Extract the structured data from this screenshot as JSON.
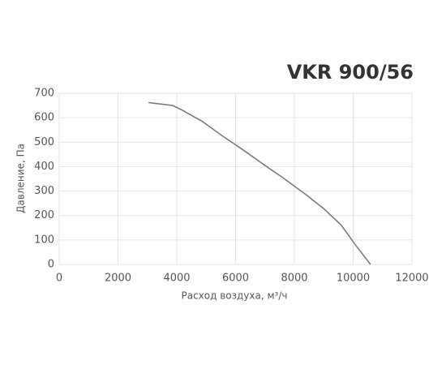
{
  "chart_data": {
    "type": "line",
    "title": "VKR 900/56",
    "x_label": "Расход воздуха, м³/ч",
    "y_label": "Давление, Па",
    "series": [
      {
        "name": "VKR 900/56",
        "color": "#7a7a7a",
        "x": [
          3040,
          3860,
          4200,
          4880,
          5500,
          6260,
          7000,
          7640,
          8400,
          9020,
          9600,
          10040,
          10300,
          10590
        ],
        "values": [
          662,
          650,
          630,
          584,
          530,
          468,
          405,
          352,
          285,
          226,
          160,
          86,
          45,
          0
        ]
      }
    ],
    "xlim": [
      0,
      12000
    ],
    "xticks": [
      0,
      2000,
      4000,
      6000,
      8000,
      10000,
      12000
    ],
    "ylim": [
      0,
      700
    ],
    "yticks": [
      0,
      100,
      200,
      300,
      400,
      500,
      600,
      700
    ],
    "grid": true
  }
}
